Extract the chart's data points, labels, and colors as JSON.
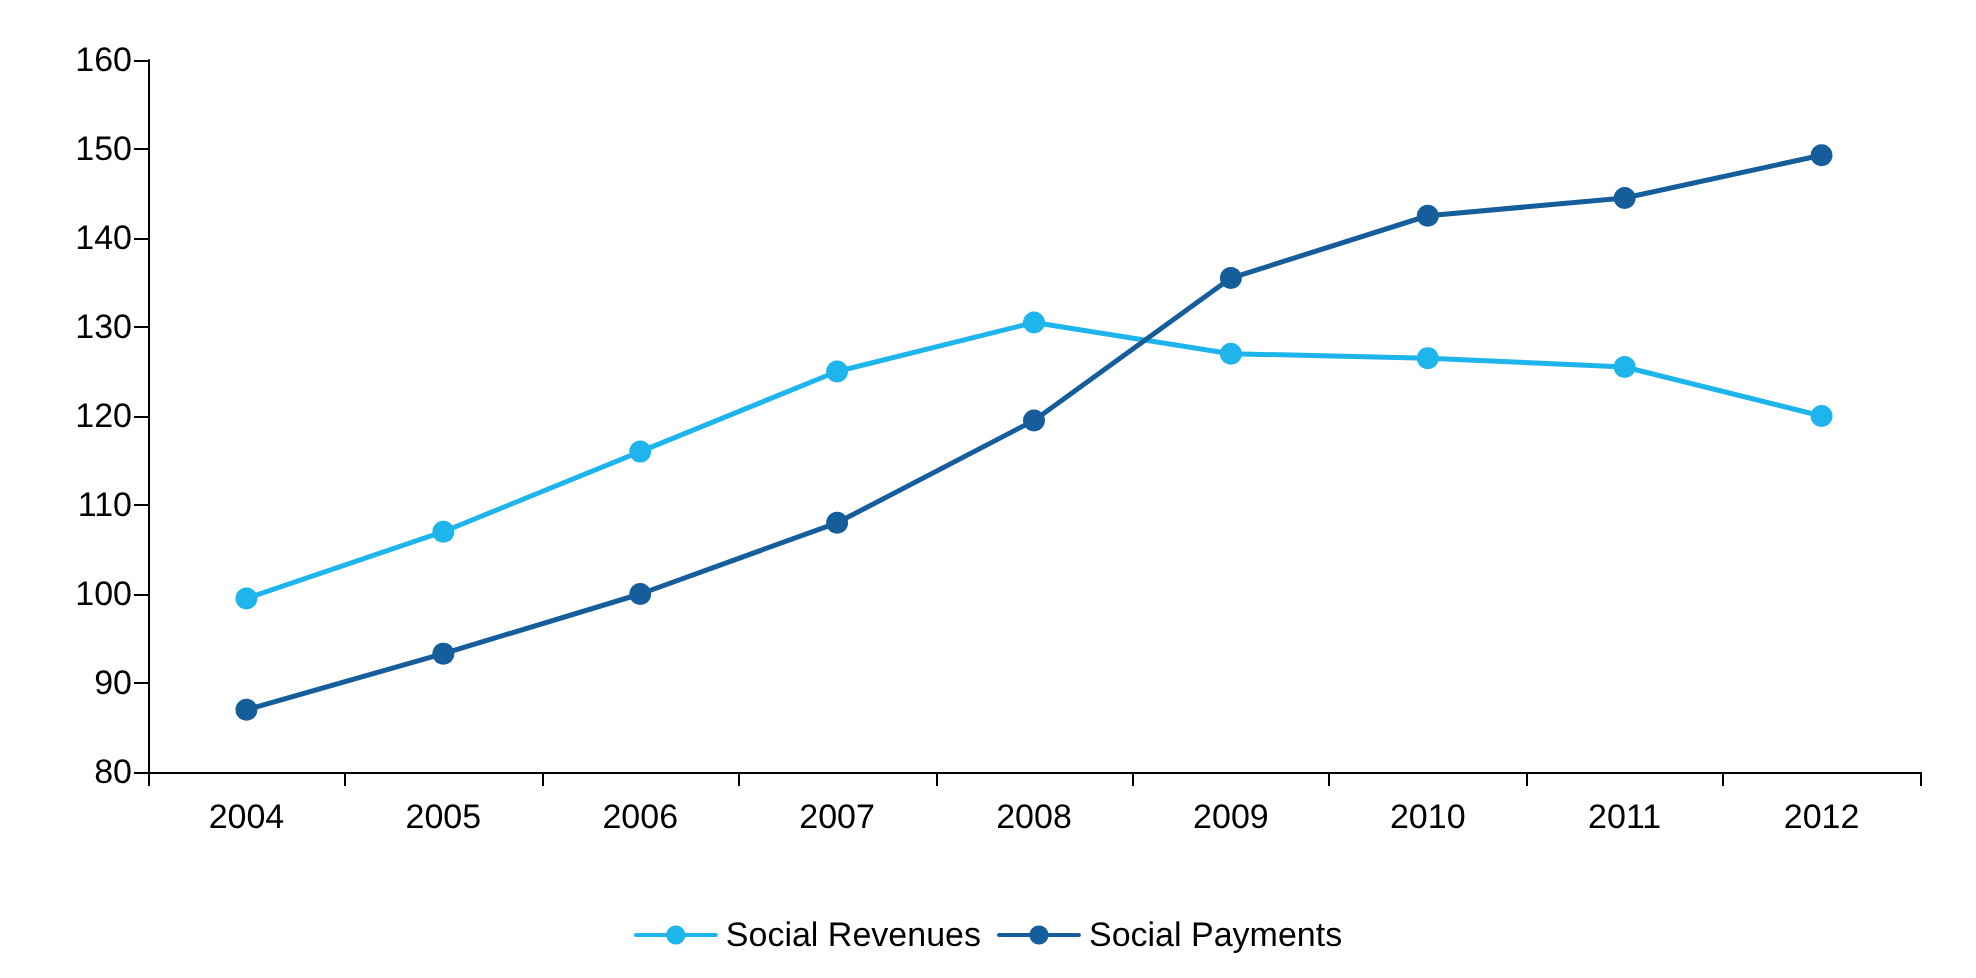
{
  "chart_data": {
    "type": "line",
    "categories": [
      "2004",
      "2005",
      "2006",
      "2007",
      "2008",
      "2009",
      "2010",
      "2011",
      "2012"
    ],
    "series": [
      {
        "name": "Social Revenues",
        "color": "#1eb4ec",
        "values": [
          99.5,
          107,
          116,
          125,
          130.5,
          127,
          126.5,
          125.5,
          120
        ]
      },
      {
        "name": "Social Payments",
        "color": "#165d9c",
        "values": [
          87,
          93.3,
          100,
          108,
          119.5,
          135.5,
          142.5,
          144.5,
          149.3
        ]
      }
    ],
    "ylim": [
      80,
      160
    ],
    "yticks": [
      80,
      90,
      100,
      110,
      120,
      130,
      140,
      150,
      160
    ],
    "grid": false,
    "legend": "bottom",
    "marker": "circle",
    "line_style": "solid"
  }
}
